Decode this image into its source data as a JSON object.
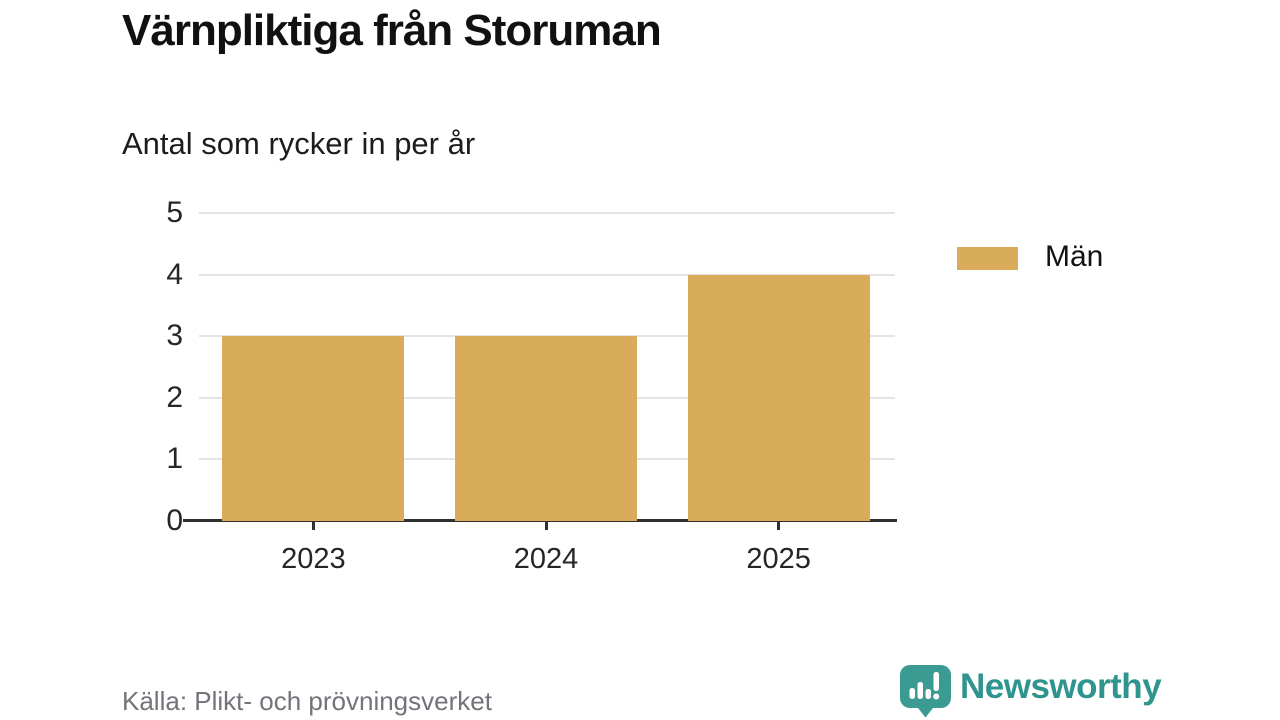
{
  "header": {
    "title": "Värnpliktiga från Storuman",
    "subtitle": "Antal som rycker in per år"
  },
  "chart_data": {
    "type": "bar",
    "categories": [
      "2023",
      "2024",
      "2025"
    ],
    "series": [
      {
        "name": "Män",
        "values": [
          3,
          3,
          4
        ],
        "color": "#d9ac5c"
      }
    ],
    "title": "Värnpliktiga från Storuman",
    "subtitle": "Antal som rycker in per år",
    "xlabel": "",
    "ylabel": "",
    "ylim": [
      0,
      5
    ],
    "yticks": [
      0,
      1,
      2,
      3,
      4,
      5
    ],
    "grid": true,
    "legend_position": "right"
  },
  "footer": {
    "source": "Källa: Plikt- och prövningsverket",
    "brand": "Newsworthy"
  },
  "colors": {
    "bar": "#d9ac5c",
    "grid": "#e4e4e4",
    "axis": "#2f2f2f",
    "brand_teal": "#2f948e",
    "muted_text": "#73737a"
  }
}
